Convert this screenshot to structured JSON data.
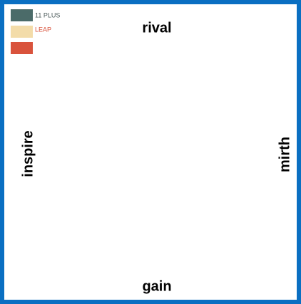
{
  "labels": {
    "top": "rival",
    "bottom": "gain",
    "left": "inspire",
    "right": "mirth"
  },
  "legend": [
    {
      "label": "11 PLUS",
      "color": "#4b6b69"
    },
    {
      "label": "LEAP",
      "color": "#f3dca9"
    },
    {
      "color": "#d9533c"
    }
  ]
}
